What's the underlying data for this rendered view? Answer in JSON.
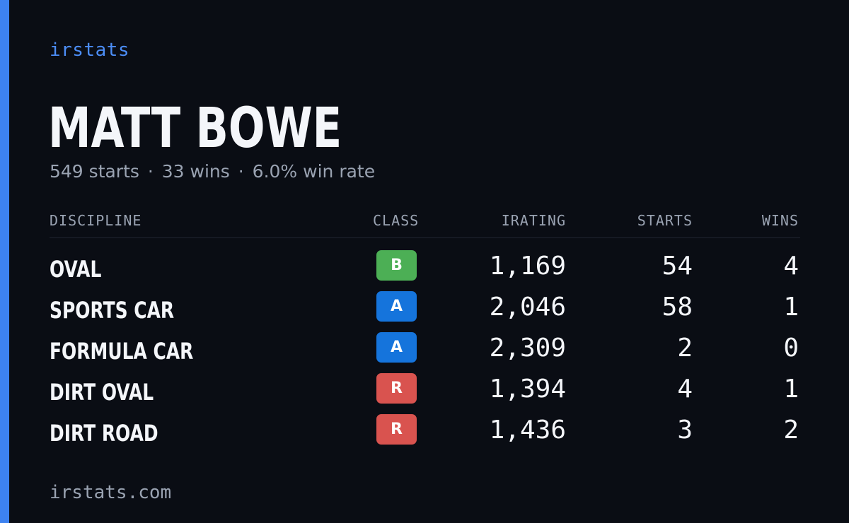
{
  "brand": "irstats",
  "driver": {
    "name": "MATT BOWE",
    "starts": "549 starts",
    "wins": "33 wins",
    "win_rate": "6.0% win rate",
    "separator": "·"
  },
  "table": {
    "headers": {
      "discipline": "DISCIPLINE",
      "class": "CLASS",
      "irating": "IRATING",
      "starts": "STARTS",
      "wins": "WINS"
    },
    "rows": [
      {
        "discipline": "OVAL",
        "class": "B",
        "irating": "1,169",
        "starts": "54",
        "wins": "4"
      },
      {
        "discipline": "SPORTS CAR",
        "class": "A",
        "irating": "2,046",
        "starts": "58",
        "wins": "1"
      },
      {
        "discipline": "FORMULA CAR",
        "class": "A",
        "irating": "2,309",
        "starts": "2",
        "wins": "0"
      },
      {
        "discipline": "DIRT OVAL",
        "class": "R",
        "irating": "1,394",
        "starts": "4",
        "wins": "1"
      },
      {
        "discipline": "DIRT ROAD",
        "class": "R",
        "irating": "1,436",
        "starts": "3",
        "wins": "2"
      }
    ]
  },
  "class_colors": {
    "A": "#1574dc",
    "B": "#4caf55",
    "R": "#d9534f"
  },
  "colors": {
    "accent": "#3d82f0",
    "background": "#0a0d14"
  },
  "footer": "irstats.com"
}
